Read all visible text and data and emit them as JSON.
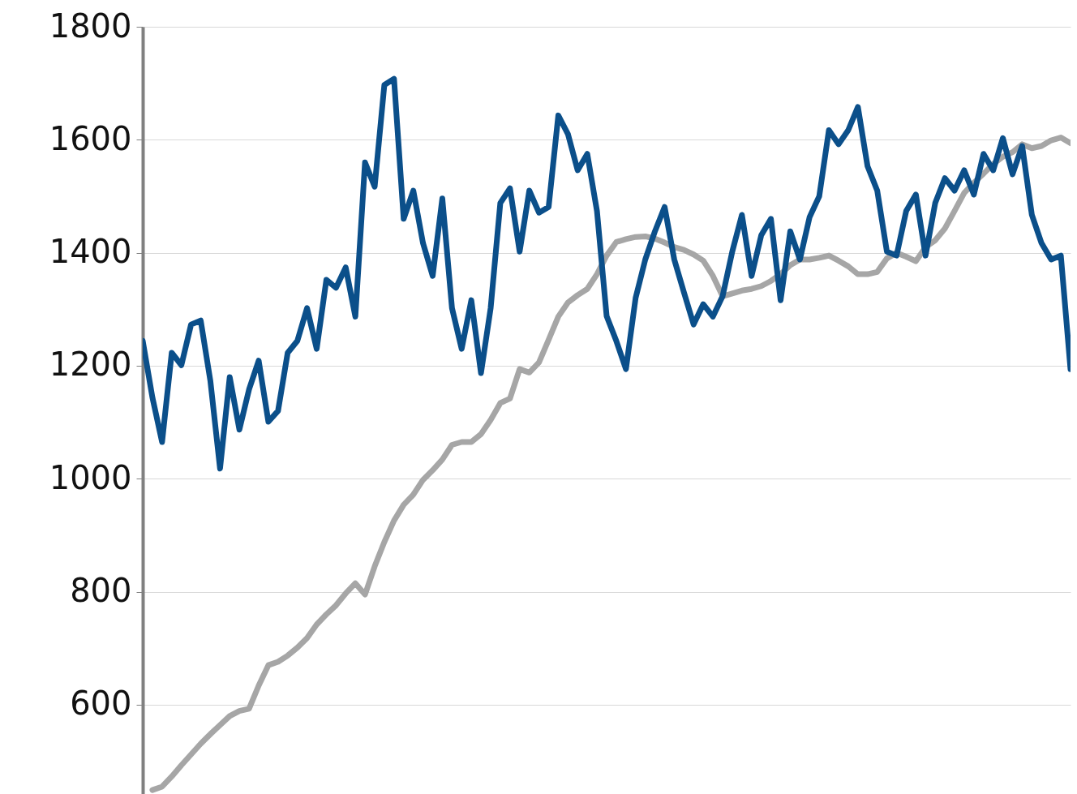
{
  "chart_data": {
    "type": "line",
    "ylim": [
      442,
      1800
    ],
    "categories": [
      null,
      null,
      null,
      null,
      null,
      null,
      null,
      null,
      null,
      null,
      null,
      null,
      null,
      null,
      null,
      null,
      null,
      null,
      null,
      null,
      null,
      null,
      null,
      null,
      null,
      null,
      null,
      null,
      null,
      null,
      null,
      null,
      null,
      null,
      null,
      null,
      null,
      null,
      null,
      null,
      null,
      null,
      null,
      null,
      null,
      null,
      null,
      null,
      null,
      null,
      null,
      null,
      null,
      null,
      null,
      null,
      null,
      null,
      null,
      null,
      null,
      null,
      null,
      null,
      null,
      null,
      null,
      null,
      null,
      null,
      null,
      null,
      null,
      null,
      null,
      null,
      null,
      null,
      null,
      null,
      null,
      null,
      null,
      null,
      null,
      null,
      null,
      null,
      null,
      null,
      null,
      null,
      null,
      null,
      null,
      null,
      null
    ],
    "yticks": [
      600,
      800,
      1000,
      1200,
      1400,
      1600,
      1800
    ],
    "grid": "y",
    "tick_labels": "y",
    "series": [
      {
        "color": "#a6a6a6",
        "values": [
          null,
          449,
          455,
          473,
          493,
          512,
          531,
          548,
          564,
          580,
          589,
          593,
          634,
          670,
          676,
          687,
          701,
          718,
          742,
          760,
          776,
          797,
          815,
          795,
          845,
          888,
          926,
          954,
          972,
          998,
          1015,
          1034,
          1060,
          1065,
          1065,
          1079,
          1104,
          1134,
          1142,
          1194,
          1188,
          1206,
          1246,
          1287,
          1312,
          1325,
          1336,
          1362,
          1395,
          1419,
          1424,
          1428,
          1429,
          1425,
          1418,
          1410,
          1405,
          1397,
          1386,
          1359,
          1323,
          1328,
          1333,
          1336,
          1341,
          1350,
          1362,
          1378,
          1388,
          1388,
          1391,
          1395,
          1386,
          1376,
          1362,
          1362,
          1366,
          1390,
          1400,
          1393,
          1385,
          1410,
          1422,
          1443,
          1474,
          1506,
          1524,
          1540,
          1557,
          1570,
          1578,
          1592,
          1585,
          1589,
          1599,
          1604,
          1594
        ]
      },
      {
        "color": "#0b4f8a",
        "values": [
          1244,
          1144,
          1065,
          1223,
          1201,
          1273,
          1280,
          1173,
          1018,
          1180,
          1087,
          1158,
          1209,
          1101,
          1120,
          1223,
          1244,
          1302,
          1230,
          1352,
          1338,
          1374,
          1287,
          1560,
          1517,
          1697,
          1708,
          1460,
          1510,
          1417,
          1359,
          1496,
          1302,
          1230,
          1316,
          1187,
          1302,
          1488,
          1514,
          1402,
          1510,
          1471,
          1481,
          1643,
          1610,
          1546,
          1575,
          1474,
          1288,
          1244,
          1194,
          1320,
          1388,
          1438,
          1481,
          1388,
          1330,
          1273,
          1309,
          1287,
          1323,
          1402,
          1467,
          1359,
          1431,
          1460,
          1316,
          1438,
          1388,
          1463,
          1500,
          1617,
          1592,
          1617,
          1658,
          1553,
          1510,
          1402,
          1395,
          1474,
          1503,
          1395,
          1488,
          1532,
          1510,
          1546,
          1503,
          1575,
          1546,
          1603,
          1539,
          1589,
          1467,
          1417,
          1388,
          1395,
          1194
        ]
      }
    ]
  }
}
